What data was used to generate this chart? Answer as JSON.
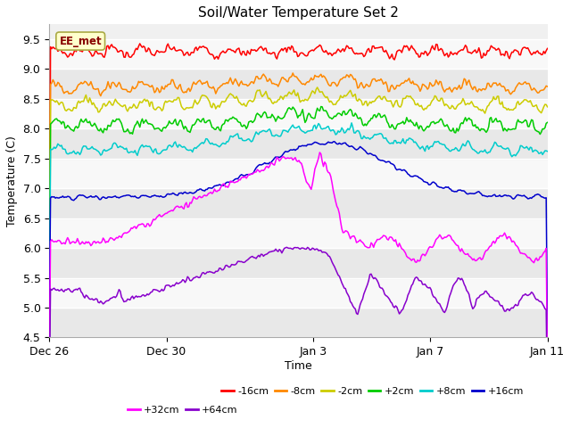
{
  "title": "Soil/Water Temperature Set 2",
  "xlabel": "Time",
  "ylabel": "Temperature (C)",
  "ylim": [
    4.5,
    9.75
  ],
  "background_color": "#ffffff",
  "plot_bg_color": "#f0f0f0",
  "annotation_text": "EE_met",
  "annotation_box_color": "#ffffcc",
  "annotation_border_color": "#aaaa44",
  "colors": {
    "-16cm": "#ff0000",
    "-8cm": "#ff8800",
    "-2cm": "#cccc00",
    "+2cm": "#00cc00",
    "+8cm": "#00cccc",
    "+16cm": "#0000cc",
    "+32cm": "#ff00ff",
    "+64cm": "#8800cc"
  },
  "xtick_labels": [
    "Dec 26",
    "Dec 30",
    "Jan 3",
    "Jan 7",
    "Jan 11"
  ],
  "xtick_positions": [
    0,
    4,
    9,
    13,
    17
  ],
  "ytick_positions": [
    4.5,
    5.0,
    5.5,
    6.0,
    6.5,
    7.0,
    7.5,
    8.0,
    8.5,
    9.0,
    9.5
  ],
  "legend_row1": [
    "-16cm",
    "-8cm",
    "-2cm",
    "+2cm",
    "+8cm",
    "+16cm"
  ],
  "legend_row2": [
    "+32cm",
    "+64cm"
  ]
}
